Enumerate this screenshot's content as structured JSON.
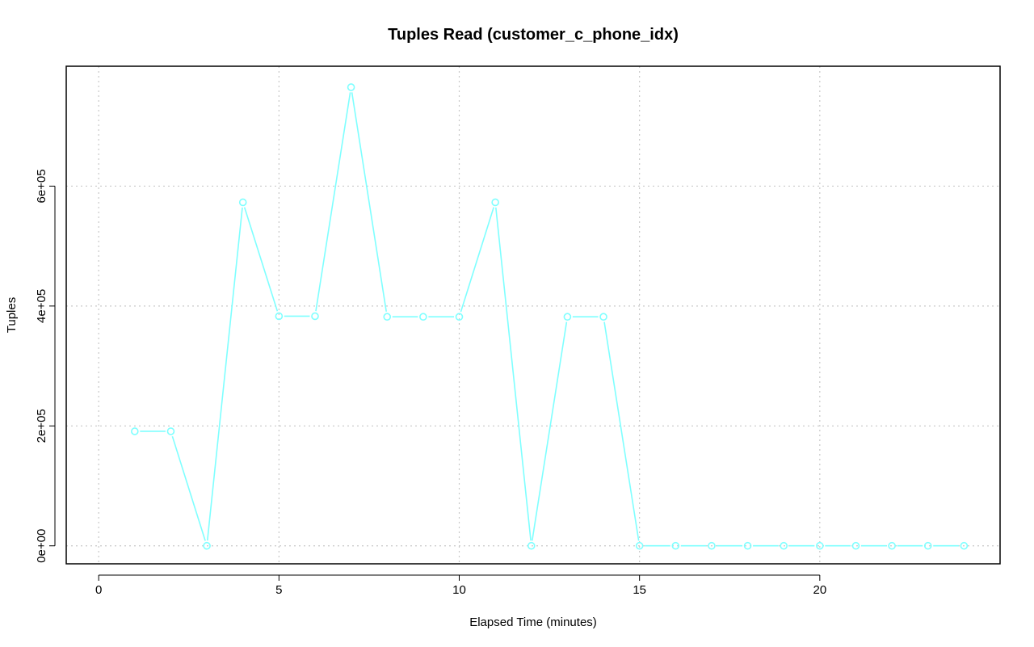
{
  "chart_data": {
    "type": "line",
    "title": "Tuples Read (customer_c_phone_idx)",
    "xlabel": "Elapsed Time (minutes)",
    "ylabel": "Tuples",
    "xlim": [
      -0.9,
      25.0
    ],
    "ylim": [
      -30000,
      800000
    ],
    "x_ticks": [
      0,
      5,
      10,
      15,
      20
    ],
    "x_tick_labels": [
      "0",
      "5",
      "10",
      "15",
      "20"
    ],
    "y_ticks": [
      0,
      200000,
      400000,
      600000
    ],
    "y_tick_labels": [
      "0e+00",
      "2e+05",
      "4e+05",
      "6e+05"
    ],
    "grid": true,
    "series": [
      {
        "color": "#7fffff",
        "marker": "open-circle",
        "x": [
          1,
          2,
          3,
          4,
          5,
          6,
          7,
          8,
          9,
          10,
          11,
          12,
          13,
          14,
          15,
          16,
          17,
          18,
          19,
          20,
          21,
          22,
          23,
          24
        ],
        "y": [
          191000,
          191000,
          0,
          573000,
          383000,
          383000,
          765000,
          382000,
          382000,
          382000,
          573000,
          0,
          382000,
          382000,
          0,
          0,
          0,
          0,
          0,
          0,
          0,
          0,
          0,
          0
        ]
      }
    ]
  }
}
